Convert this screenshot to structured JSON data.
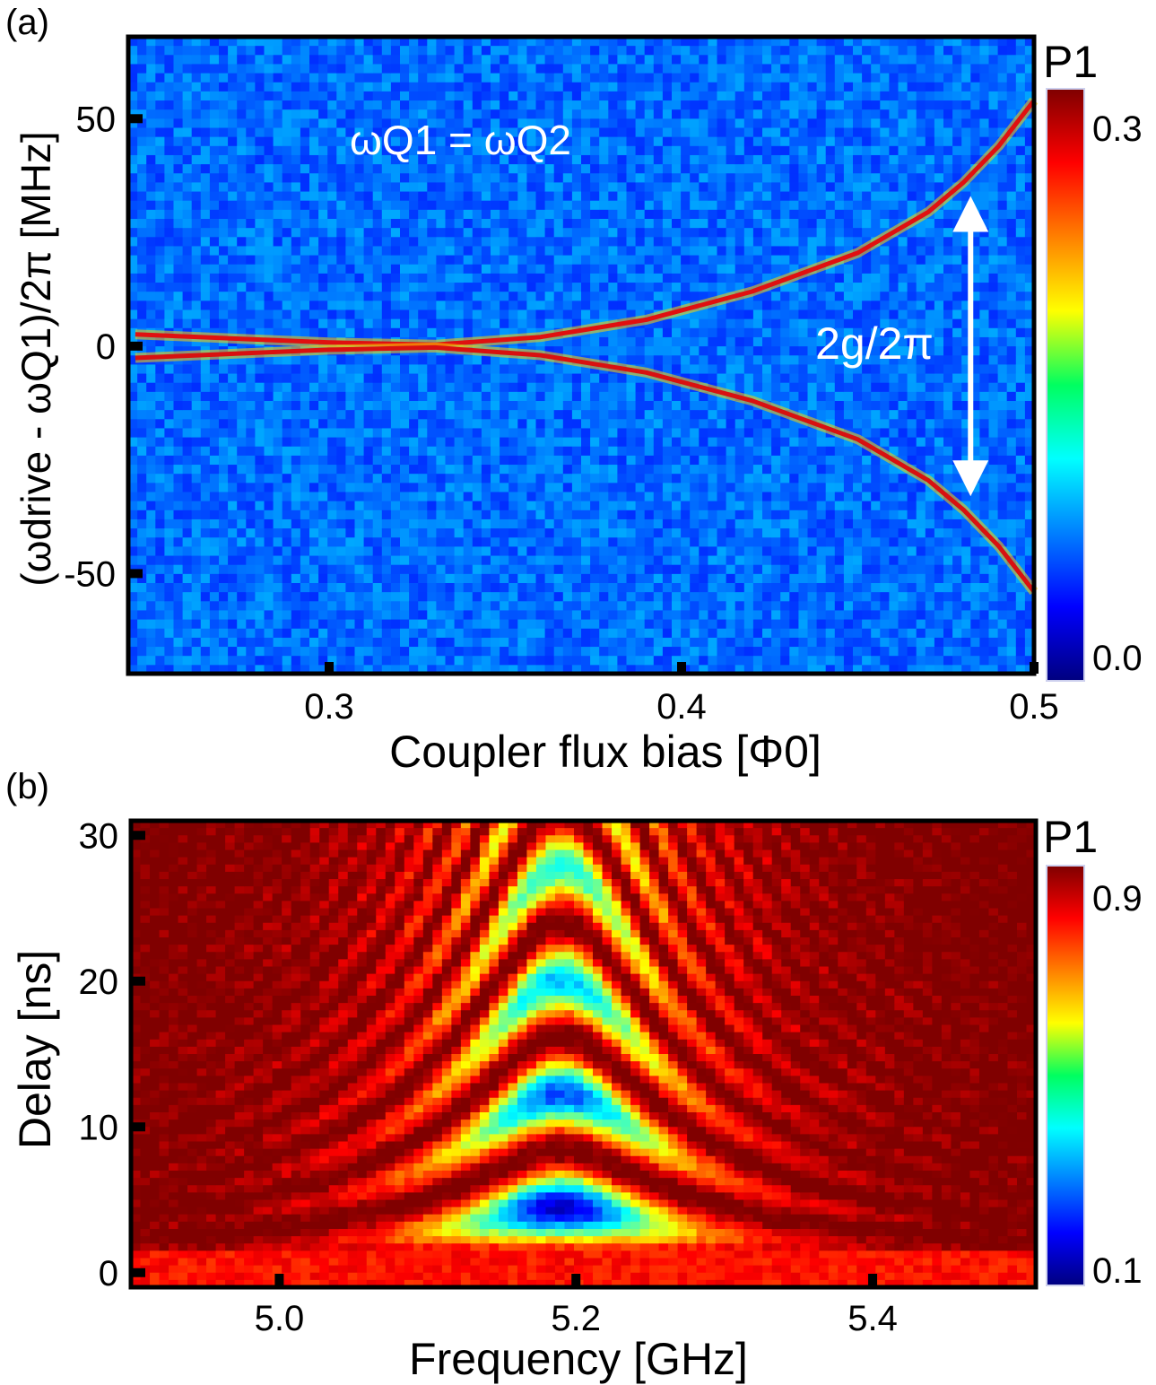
{
  "chart_data": [
    {
      "type": "heatmap",
      "panel_label": "(a)",
      "xlabel": "Coupler flux bias [Φ0]",
      "ylabel": "(ωdrive - ωQ1)/2π [MHz]",
      "xlim": [
        0.243,
        0.5
      ],
      "ylim": [
        -72,
        68
      ],
      "xticks": [
        0.3,
        0.4,
        0.5
      ],
      "xtick_labels": [
        "0.3",
        "0.4",
        "0.5"
      ],
      "yticks": [
        50,
        0,
        -50
      ],
      "ytick_labels": [
        "50",
        "0",
        "-50"
      ],
      "colorbar": {
        "label": "P1",
        "min": 0.0,
        "max": 0.3,
        "tick_labels": [
          "0.3",
          "0.0"
        ]
      },
      "annotations": [
        "ωQ1 = ωQ2",
        "2g/2π"
      ],
      "series": [
        {
          "values": [
            [
              0.245,
              2.6
            ],
            [
              0.275,
              1.6
            ],
            [
              0.3,
              0.8
            ],
            [
              0.33,
              0.3
            ],
            [
              0.36,
              2.0
            ],
            [
              0.39,
              5.8
            ],
            [
              0.42,
              12.0
            ],
            [
              0.45,
              20.5
            ],
            [
              0.47,
              29.5
            ],
            [
              0.48,
              36.0
            ],
            [
              0.49,
              44.0
            ],
            [
              0.5,
              54.0
            ]
          ]
        },
        {
          "values": [
            [
              0.245,
              -2.6
            ],
            [
              0.275,
              -1.6
            ],
            [
              0.3,
              -0.8
            ],
            [
              0.33,
              -0.3
            ],
            [
              0.36,
              -2.0
            ],
            [
              0.39,
              -5.8
            ],
            [
              0.42,
              -12.0
            ],
            [
              0.45,
              -20.5
            ],
            [
              0.47,
              -29.5
            ],
            [
              0.48,
              -36.0
            ],
            [
              0.49,
              -44.0
            ],
            [
              0.5,
              -54.0
            ]
          ]
        }
      ],
      "marker_arrow": {
        "x": 0.482,
        "y_from": 33,
        "y_to": -33
      }
    },
    {
      "type": "heatmap",
      "panel_label": "(b)",
      "xlabel": "Frequency [GHz]",
      "ylabel": "Delay [ns]",
      "xlim": [
        4.9,
        5.51
      ],
      "ylim": [
        -1,
        31
      ],
      "xticks": [
        5.0,
        5.2,
        5.4
      ],
      "xtick_labels": [
        "5.0",
        "5.2",
        "5.4"
      ],
      "yticks": [
        30,
        20,
        10,
        0
      ],
      "ytick_labels": [
        "30",
        "20",
        "10",
        "0"
      ],
      "colorbar": {
        "label": "P1",
        "min": 0.1,
        "max": 0.9,
        "tick_labels": [
          "0.9",
          "0.1"
        ]
      },
      "fringe_center_ghz": 5.19,
      "dip_minima": [
        {
          "delay_ns": 5.5,
          "p1": 0.1
        },
        {
          "delay_ns": 14.5,
          "p1": 0.15
        },
        {
          "delay_ns": 24.0,
          "p1": 0.3
        }
      ]
    }
  ]
}
